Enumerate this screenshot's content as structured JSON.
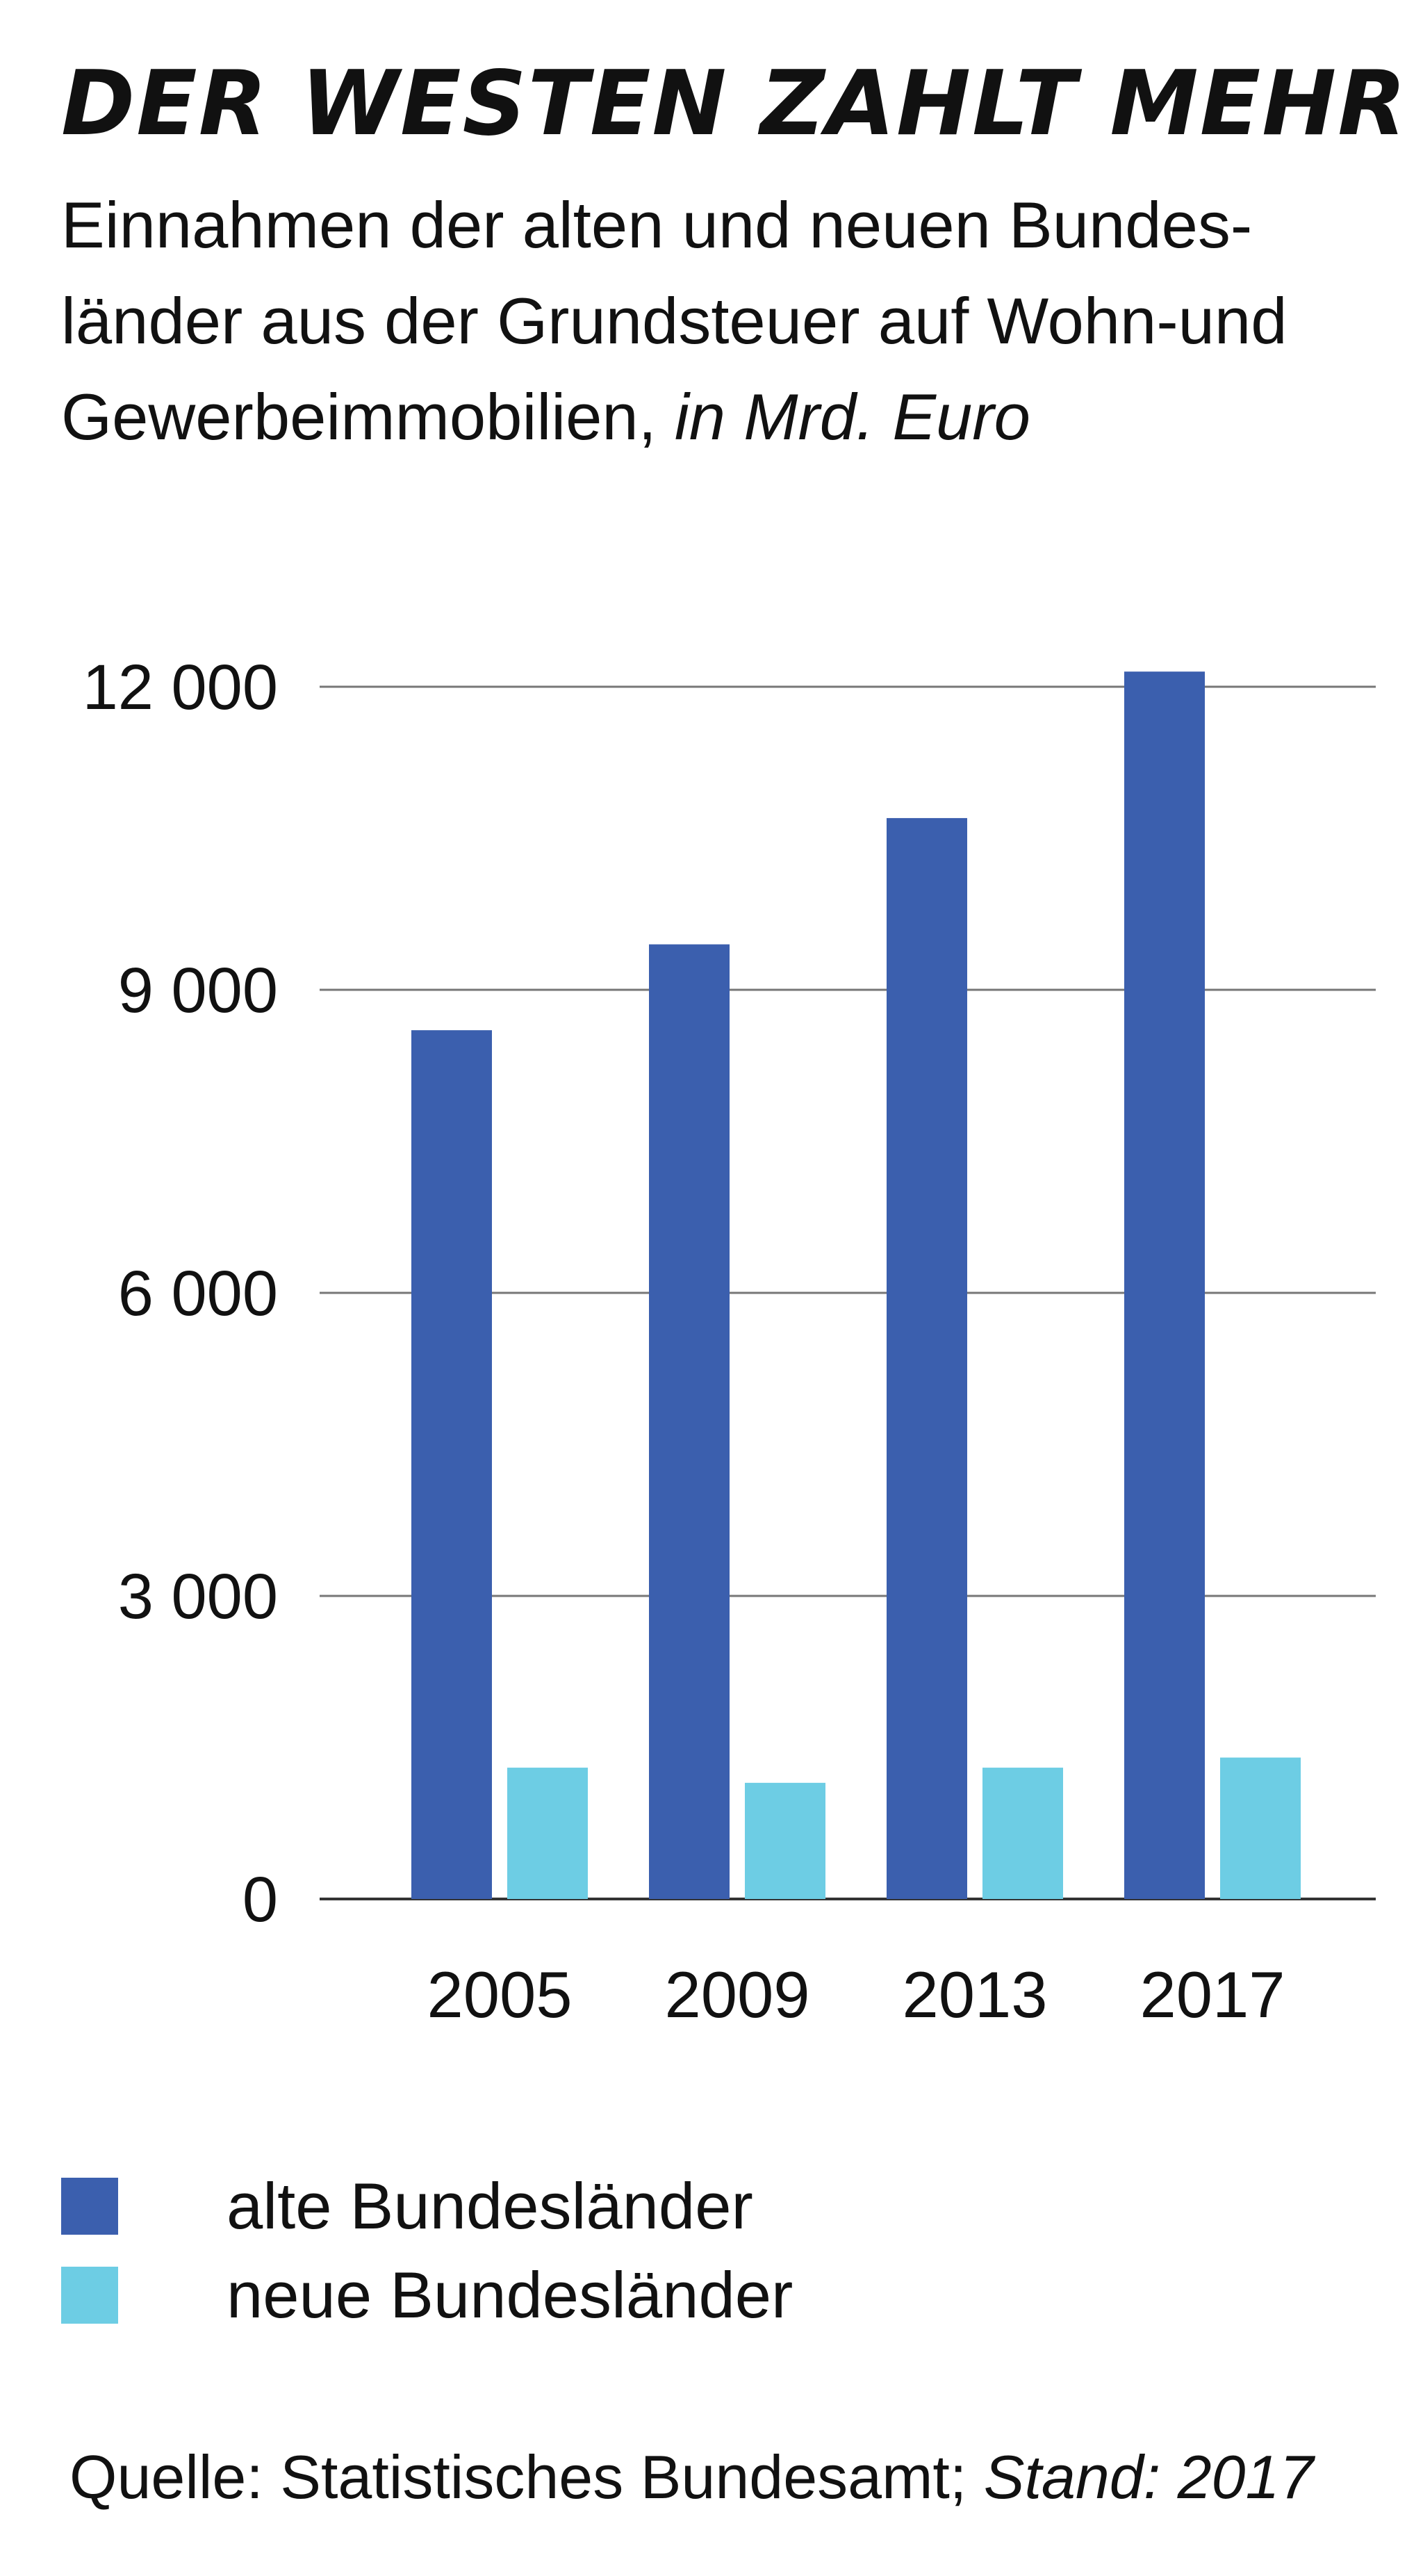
{
  "header": {
    "title": "DER WESTEN ZAHLT MEHR",
    "subtitle": "Einnahmen der alten und neuen Bundes-länder aus der Grundsteuer auf Wohn-und Gewerbeimmobilien,",
    "unit": "in Mrd. Euro"
  },
  "footer": {
    "source": "Quelle: Statistisches Bundesamt;",
    "stand": "Stand: 2017"
  },
  "chart_data": {
    "type": "bar",
    "title": "DER WESTEN ZAHLT MEHR",
    "xlabel": "",
    "ylabel": "",
    "categories": [
      "2005",
      "2009",
      "2013",
      "2017"
    ],
    "series": [
      {
        "name": "alte Bundesländer",
        "color": "#3b5fae",
        "values": [
          8600,
          9450,
          10700,
          12150
        ]
      },
      {
        "name": "neue Bundesländer",
        "color": "#6dcde4",
        "values": [
          1300,
          1150,
          1300,
          1400
        ]
      }
    ],
    "ylim": [
      0,
      12000
    ],
    "yticks": [
      0,
      3000,
      6000,
      9000,
      12000
    ],
    "ytick_labels": [
      "0",
      "3 000",
      "6 000",
      "9 000",
      "12 000"
    ],
    "grid": true,
    "legend_position": "bottom-left"
  }
}
